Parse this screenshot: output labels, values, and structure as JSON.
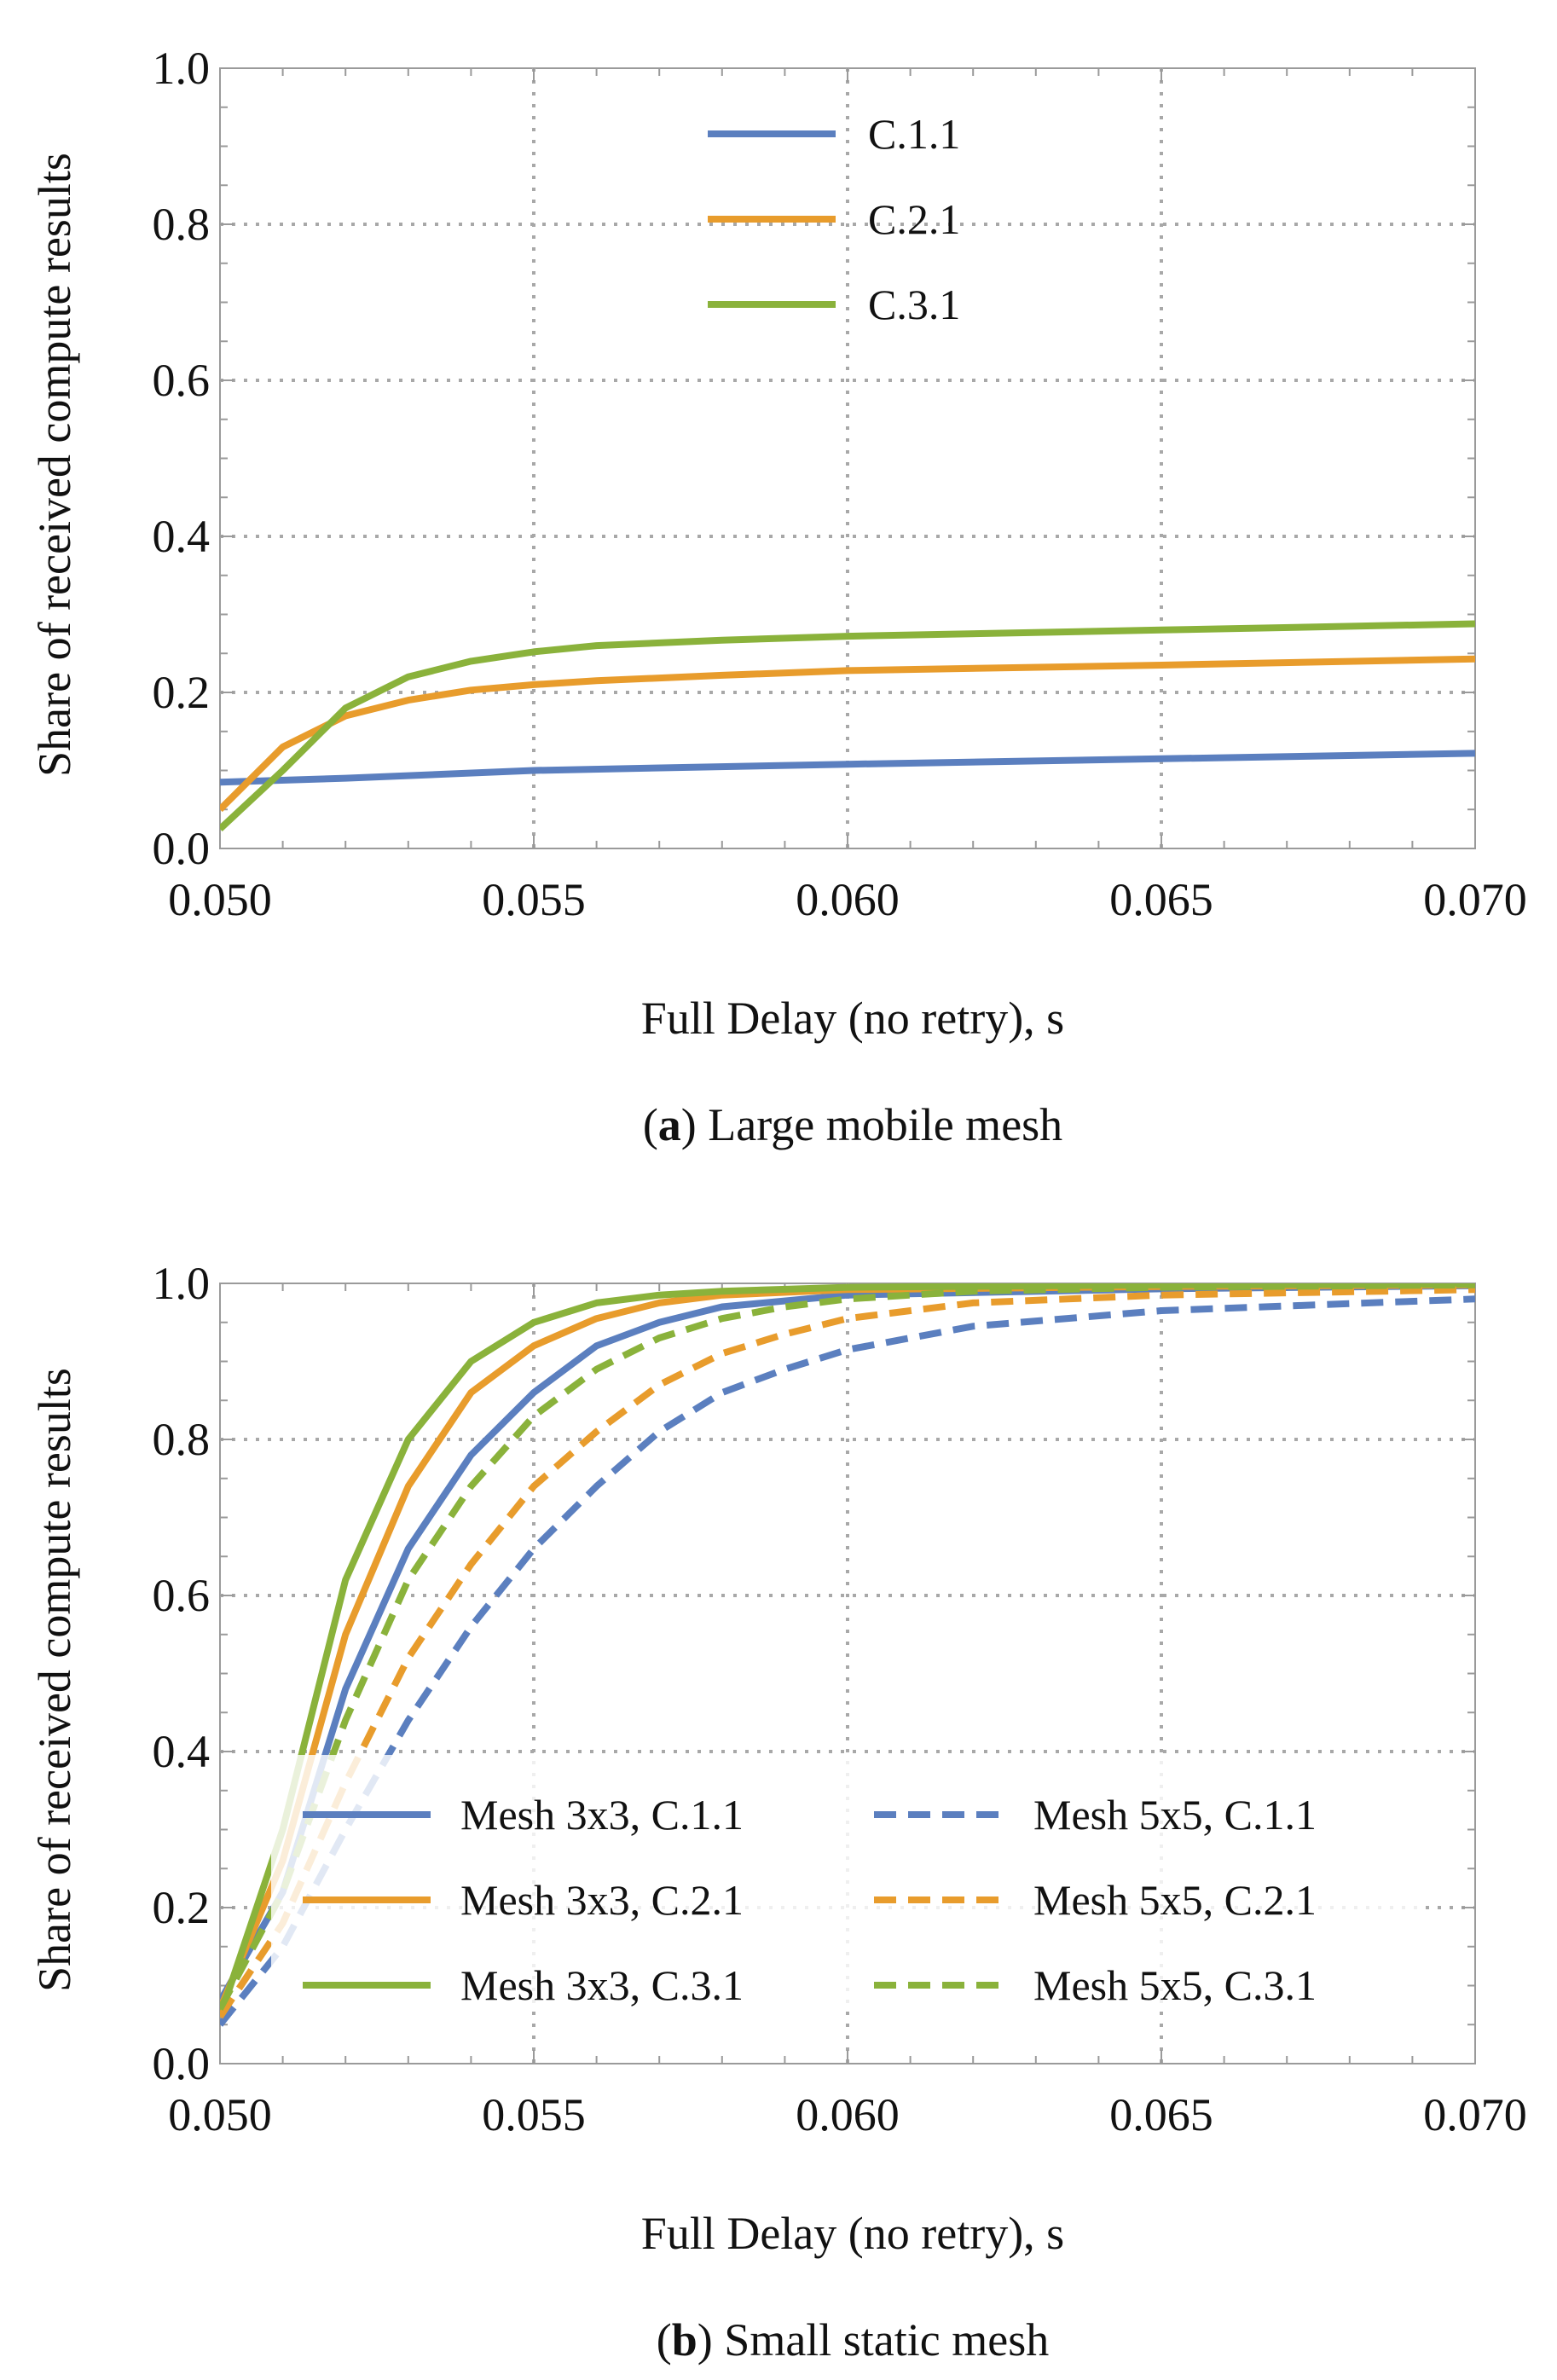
{
  "chart_data": [
    {
      "type": "line",
      "caption_label": "a",
      "caption_text": "Large mobile mesh",
      "xlabel": "Full Delay (no retry), s",
      "ylabel": "Share of received compute results",
      "xlim": [
        0.05,
        0.07
      ],
      "ylim": [
        0.0,
        1.0
      ],
      "x_ticks": [
        "0.050",
        "0.055",
        "0.060",
        "0.065",
        "0.070"
      ],
      "y_ticks": [
        "0.0",
        "0.2",
        "0.4",
        "0.6",
        "0.8",
        "1.0"
      ],
      "grid": true,
      "legend_position": "top-center",
      "series": [
        {
          "name": "C.1.1",
          "color": "#5b7fbf",
          "dash": false,
          "x": [
            0.05,
            0.052,
            0.055,
            0.06,
            0.065,
            0.07
          ],
          "y": [
            0.085,
            0.09,
            0.1,
            0.108,
            0.115,
            0.122
          ]
        },
        {
          "name": "C.2.1",
          "color": "#e89c2c",
          "dash": false,
          "x": [
            0.05,
            0.051,
            0.052,
            0.053,
            0.054,
            0.055,
            0.056,
            0.058,
            0.06,
            0.065,
            0.07
          ],
          "y": [
            0.05,
            0.13,
            0.17,
            0.19,
            0.203,
            0.21,
            0.215,
            0.222,
            0.228,
            0.235,
            0.243
          ]
        },
        {
          "name": "C.3.1",
          "color": "#8ab23b",
          "dash": false,
          "x": [
            0.05,
            0.051,
            0.052,
            0.053,
            0.054,
            0.055,
            0.056,
            0.058,
            0.06,
            0.065,
            0.07
          ],
          "y": [
            0.025,
            0.1,
            0.18,
            0.22,
            0.24,
            0.252,
            0.26,
            0.267,
            0.272,
            0.28,
            0.288
          ]
        }
      ]
    },
    {
      "type": "line",
      "caption_label": "b",
      "caption_text": "Small static mesh",
      "xlabel": "Full Delay (no retry), s",
      "ylabel": "Share of received compute results",
      "xlim": [
        0.05,
        0.07
      ],
      "ylim": [
        0.0,
        1.0
      ],
      "x_ticks": [
        "0.050",
        "0.055",
        "0.060",
        "0.065",
        "0.070"
      ],
      "y_ticks": [
        "0.0",
        "0.2",
        "0.4",
        "0.6",
        "0.8",
        "1.0"
      ],
      "grid": true,
      "legend_position": "bottom-center",
      "series": [
        {
          "name": "Mesh 3x3, C.1.1",
          "color": "#5b7fbf",
          "dash": false,
          "x": [
            0.05,
            0.051,
            0.052,
            0.053,
            0.054,
            0.055,
            0.056,
            0.057,
            0.058,
            0.06,
            0.065,
            0.07
          ],
          "y": [
            0.08,
            0.22,
            0.48,
            0.66,
            0.78,
            0.86,
            0.92,
            0.95,
            0.97,
            0.985,
            0.993,
            0.997
          ]
        },
        {
          "name": "Mesh 3x3, C.2.1",
          "color": "#e89c2c",
          "dash": false,
          "x": [
            0.05,
            0.051,
            0.052,
            0.053,
            0.054,
            0.055,
            0.056,
            0.057,
            0.058,
            0.06,
            0.065,
            0.07
          ],
          "y": [
            0.07,
            0.26,
            0.55,
            0.74,
            0.86,
            0.92,
            0.955,
            0.975,
            0.985,
            0.992,
            0.996,
            0.998
          ]
        },
        {
          "name": "Mesh 3x3, C.3.1",
          "color": "#8ab23b",
          "dash": false,
          "x": [
            0.05,
            0.051,
            0.052,
            0.053,
            0.054,
            0.055,
            0.056,
            0.057,
            0.058,
            0.06,
            0.065,
            0.07
          ],
          "y": [
            0.06,
            0.3,
            0.62,
            0.8,
            0.9,
            0.95,
            0.975,
            0.985,
            0.99,
            0.995,
            0.998,
            0.999
          ]
        },
        {
          "name": "Mesh 5x5, C.1.1",
          "color": "#5b7fbf",
          "dash": true,
          "x": [
            0.05,
            0.051,
            0.052,
            0.053,
            0.054,
            0.055,
            0.056,
            0.057,
            0.058,
            0.059,
            0.06,
            0.062,
            0.065,
            0.07
          ],
          "y": [
            0.05,
            0.15,
            0.3,
            0.44,
            0.56,
            0.66,
            0.74,
            0.81,
            0.86,
            0.89,
            0.915,
            0.945,
            0.965,
            0.98
          ]
        },
        {
          "name": "Mesh 5x5, C.2.1",
          "color": "#e89c2c",
          "dash": true,
          "x": [
            0.05,
            0.051,
            0.052,
            0.053,
            0.054,
            0.055,
            0.056,
            0.057,
            0.058,
            0.059,
            0.06,
            0.062,
            0.065,
            0.07
          ],
          "y": [
            0.06,
            0.18,
            0.36,
            0.52,
            0.64,
            0.74,
            0.81,
            0.87,
            0.91,
            0.935,
            0.955,
            0.975,
            0.985,
            0.992
          ]
        },
        {
          "name": "Mesh 5x5, C.3.1",
          "color": "#8ab23b",
          "dash": true,
          "x": [
            0.05,
            0.051,
            0.052,
            0.053,
            0.054,
            0.055,
            0.056,
            0.057,
            0.058,
            0.059,
            0.06,
            0.062,
            0.065,
            0.07
          ],
          "y": [
            0.07,
            0.22,
            0.44,
            0.62,
            0.74,
            0.83,
            0.89,
            0.93,
            0.955,
            0.97,
            0.98,
            0.99,
            0.995,
            0.998
          ]
        }
      ]
    }
  ]
}
